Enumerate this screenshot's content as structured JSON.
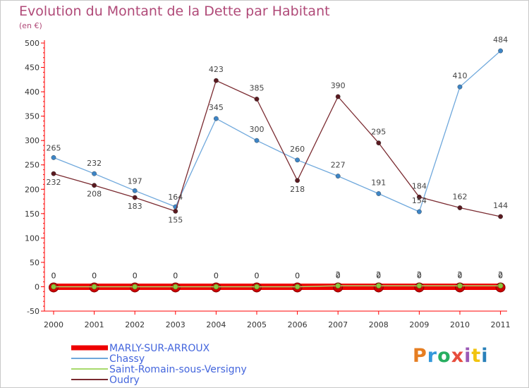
{
  "chart_data": {
    "type": "line",
    "title": "Evolution du Montant de la Dette par Habitant",
    "subtitle": "(en €)",
    "x": [
      "2000",
      "2001",
      "2002",
      "2003",
      "2004",
      "2005",
      "2006",
      "2007",
      "2008",
      "2009",
      "2010",
      "2011"
    ],
    "ylim": [
      -50,
      500
    ],
    "yticks": [
      -50,
      0,
      50,
      100,
      150,
      200,
      250,
      300,
      350,
      400,
      450,
      500
    ],
    "grid": false,
    "legend_position": "bottom-left",
    "series": [
      {
        "name": "MARLY-SUR-ARROUX",
        "color": "#ee0000",
        "values": [
          0,
          0,
          0,
          0,
          0,
          0,
          0,
          0,
          0,
          0,
          0,
          0
        ],
        "labels": [
          "0",
          "0",
          "0",
          "0",
          "0",
          "0",
          "0",
          "0",
          "0",
          "0",
          "0",
          "0"
        ]
      },
      {
        "name": "Chassy",
        "color": "#6fa8dc",
        "marker_color": "#3d85c6",
        "values": [
          265,
          232,
          197,
          164,
          345,
          300,
          260,
          227,
          191,
          154,
          410,
          484
        ],
        "labels": [
          "265",
          "232",
          "197",
          "164",
          "345",
          "300",
          "260",
          "227",
          "191",
          "154",
          "410",
          "484"
        ]
      },
      {
        "name": "Saint-Romain-sous-Versigny",
        "color": "#a8d96c",
        "marker_color": "#8cc63f",
        "values": [
          0,
          0,
          0,
          0,
          0,
          0,
          0,
          2,
          2,
          2,
          2,
          2
        ],
        "labels": [
          "0",
          "0",
          "0",
          "0",
          "0",
          "0",
          "0",
          "2",
          "2",
          "2",
          "2",
          "2"
        ]
      },
      {
        "name": "Oudry",
        "color": "#7a2a30",
        "marker_color": "#5a1a20",
        "values": [
          232,
          208,
          183,
          155,
          423,
          385,
          218,
          390,
          295,
          184,
          162,
          144
        ],
        "labels": [
          "232",
          "208",
          "183",
          "155",
          "423",
          "385",
          "218",
          "390",
          "295",
          "184",
          "162",
          "144"
        ]
      }
    ]
  },
  "logo": {
    "text": "Proxiti",
    "colors": [
      "#e67e22",
      "#3498db",
      "#27ae60",
      "#e74c3c",
      "#9b59b6",
      "#f1c40f",
      "#2980b9"
    ]
  }
}
